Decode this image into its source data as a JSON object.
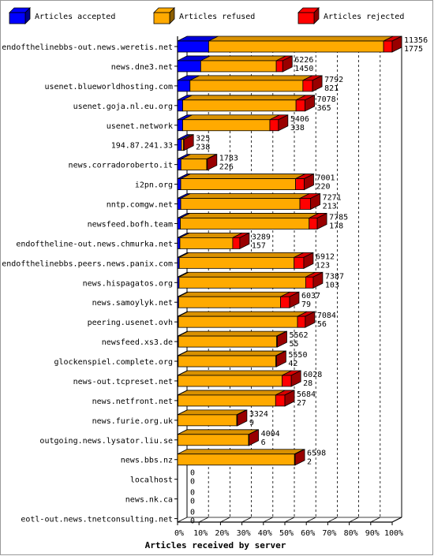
{
  "chart_data": {
    "type": "bar",
    "orientation": "horizontal",
    "stacked": true,
    "percent_scale": true,
    "xlabel": "Articles received by server",
    "ylabel": "",
    "xlim": [
      0,
      100
    ],
    "x_ticks": [
      "0%",
      "10%",
      "20%",
      "30%",
      "40%",
      "50%",
      "60%",
      "70%",
      "80%",
      "90%",
      "100%"
    ],
    "legend_position": "top",
    "grid": true,
    "series": [
      {
        "name": "Articles accepted",
        "color": "#0000ff"
      },
      {
        "name": "Articles refused",
        "color": "#ffaa00"
      },
      {
        "name": "Articles rejected",
        "color": "#ff0000"
      }
    ],
    "categories": [
      "endofthelinebbs-out.news.weretis.net",
      "news.dne3.net",
      "usenet.blueworldhosting.com",
      "usenet.goja.nl.eu.org",
      "usenet.network",
      "194.87.241.33",
      "news.corradoroberto.it",
      "i2pn.org",
      "nntp.comgw.net",
      "newsfeed.bofh.team",
      "endoftheline-out.news.chmurka.net",
      "endofthelinebbs.peers.news.panix.com",
      "news.hispagatos.org",
      "news.samoylyk.net",
      "peering.usenet.ovh",
      "newsfeed.xs3.de",
      "glockenspiel.complete.org",
      "news-out.tcpreset.net",
      "news.netfront.net",
      "news.furie.org.uk",
      "outgoing.news.lysator.liu.se",
      "news.bbs.nz",
      "localhost",
      "news.nk.ca",
      "eotl-out.news.tnetconsulting.net"
    ],
    "values": [
      {
        "total": "11356",
        "accepted": "1775",
        "accepted_pct": 14.5,
        "refused_pct": 81.5,
        "rejected_pct": 4.0
      },
      {
        "total": "6226",
        "accepted": "1450",
        "accepted_pct": 10.8,
        "refused_pct": 35.2,
        "rejected_pct": 3.0
      },
      {
        "total": "7792",
        "accepted": "821",
        "accepted_pct": 5.8,
        "refused_pct": 52.6,
        "rejected_pct": 4.5
      },
      {
        "total": "7078",
        "accepted": "365",
        "accepted_pct": 2.4,
        "refused_pct": 52.8,
        "rejected_pct": 4.2
      },
      {
        "total": "5406",
        "accepted": "338",
        "accepted_pct": 2.4,
        "refused_pct": 40.6,
        "rejected_pct": 4.0
      },
      {
        "total": "325",
        "accepted": "238",
        "accepted_pct": 1.8,
        "refused_pct": 1.0,
        "rejected_pct": 0.2
      },
      {
        "total": "1783",
        "accepted": "226",
        "accepted_pct": 1.6,
        "refused_pct": 12.0,
        "rejected_pct": 0.3
      },
      {
        "total": "7001",
        "accepted": "220",
        "accepted_pct": 1.5,
        "refused_pct": 53.5,
        "rejected_pct": 4.0
      },
      {
        "total": "7271",
        "accepted": "213",
        "accepted_pct": 1.5,
        "refused_pct": 55.5,
        "rejected_pct": 5.0
      },
      {
        "total": "7785",
        "accepted": "178",
        "accepted_pct": 1.3,
        "refused_pct": 60.0,
        "rejected_pct": 3.8
      },
      {
        "total": "3289",
        "accepted": "157",
        "accepted_pct": 1.1,
        "refused_pct": 24.6,
        "rejected_pct": 3.3
      },
      {
        "total": "6912",
        "accepted": "123",
        "accepted_pct": 0.8,
        "refused_pct": 53.5,
        "rejected_pct": 4.5
      },
      {
        "total": "7387",
        "accepted": "103",
        "accepted_pct": 0.7,
        "refused_pct": 59.0,
        "rejected_pct": 3.5
      },
      {
        "total": "6037",
        "accepted": "79",
        "accepted_pct": 0.5,
        "refused_pct": 47.5,
        "rejected_pct": 4.2
      },
      {
        "total": "7084",
        "accepted": "56",
        "accepted_pct": 0.4,
        "refused_pct": 55.5,
        "rejected_pct": 3.6
      },
      {
        "total": "5562",
        "accepted": "55",
        "accepted_pct": 0.4,
        "refused_pct": 45.8,
        "rejected_pct": 0.3
      },
      {
        "total": "5550",
        "accepted": "42",
        "accepted_pct": 0.3,
        "refused_pct": 45.5,
        "rejected_pct": 0.3
      },
      {
        "total": "6028",
        "accepted": "28",
        "accepted_pct": 0.2,
        "refused_pct": 48.5,
        "rejected_pct": 4.3
      },
      {
        "total": "5684",
        "accepted": "27",
        "accepted_pct": 0.2,
        "refused_pct": 45.5,
        "rejected_pct": 4.3
      },
      {
        "total": "3324",
        "accepted": "9",
        "accepted_pct": 0.1,
        "refused_pct": 27.5,
        "rejected_pct": 0.3
      },
      {
        "total": "4004",
        "accepted": "6",
        "accepted_pct": 0.1,
        "refused_pct": 33.0,
        "rejected_pct": 0.2
      },
      {
        "total": "6598",
        "accepted": "2",
        "accepted_pct": 0.0,
        "refused_pct": 54.5,
        "rejected_pct": 0.3
      },
      {
        "total": "0",
        "accepted": "0",
        "accepted_pct": 0,
        "refused_pct": 0,
        "rejected_pct": 0
      },
      {
        "total": "0",
        "accepted": "0",
        "accepted_pct": 0,
        "refused_pct": 0,
        "rejected_pct": 0
      },
      {
        "total": "0",
        "accepted": "0",
        "accepted_pct": 0,
        "refused_pct": 0,
        "rejected_pct": 0
      }
    ]
  }
}
